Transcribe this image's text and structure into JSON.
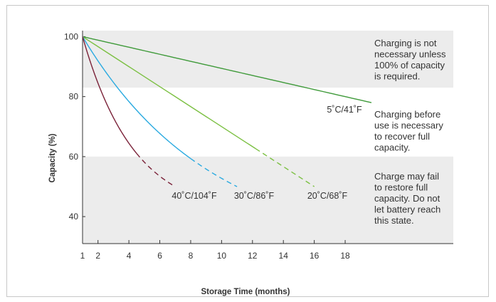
{
  "chart_data": {
    "type": "line",
    "title": "",
    "xlabel": "Storage Time (months)",
    "ylabel": "Capacity (%)",
    "xlim": [
      1,
      25
    ],
    "ylim": [
      31,
      102
    ],
    "xticks": [
      1,
      2,
      4,
      6,
      8,
      10,
      12,
      14,
      16,
      18
    ],
    "yticks": [
      40,
      60,
      80,
      100
    ],
    "grid": false,
    "legend": "none",
    "zones": [
      {
        "y_range": [
          83,
          102
        ],
        "fill": "#ececec",
        "text": [
          "Charging is not",
          "necessary unless",
          "100% of capacity",
          "is required."
        ]
      },
      {
        "y_range": [
          60,
          83
        ],
        "fill": "#ffffff",
        "text": [
          "Charging before",
          "use is necessary",
          "to recover full",
          "capacity."
        ]
      },
      {
        "y_range": [
          31,
          60
        ],
        "fill": "#ececec",
        "text": [
          "Charge may fail",
          "to restore full",
          "capacity. Do not",
          "let battery reach",
          "this state."
        ]
      }
    ],
    "series": [
      {
        "name": "5˚C/41˚F",
        "color": "#3f9a3a",
        "shape": "linear",
        "points": [
          [
            1,
            100
          ],
          [
            19.7,
            78
          ]
        ],
        "dash_from_x": null
      },
      {
        "name": "20˚C/68˚F",
        "color": "#7cc043",
        "shape": "linear",
        "points": [
          [
            1,
            100
          ],
          [
            16,
            50
          ]
        ],
        "dash_from_x": 12.2
      },
      {
        "name": "30˚C/86˚F",
        "color": "#2aaae0",
        "shape": "curve",
        "k": 0.12,
        "points": [
          [
            1,
            100
          ],
          [
            11,
            50
          ]
        ],
        "dash_from_x": 8
      },
      {
        "name": "40˚C/104˚F",
        "color": "#7a2138",
        "shape": "curve",
        "k": 0.3,
        "points": [
          [
            1,
            100
          ],
          [
            7,
            50
          ]
        ],
        "dash_from_x": 4.5
      }
    ]
  }
}
